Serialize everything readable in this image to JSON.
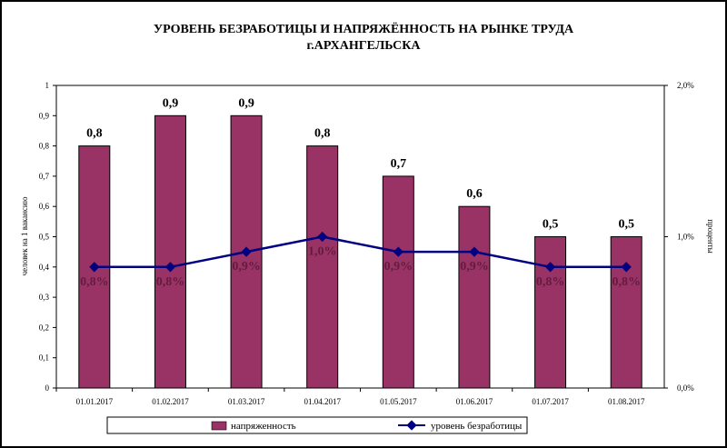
{
  "chart_data": {
    "type": "bar",
    "title_lines": [
      "УРОВЕНЬ БЕЗРАБОТИЦЫ И НАПРЯЖЁННОСТЬ НА РЫНКЕ ТРУДА",
      "г.АРХАНГЕЛЬСКА"
    ],
    "categories": [
      "01.01.2017",
      "01.02.2017",
      "01.03.2017",
      "01.04.2017",
      "01.05.2017",
      "01.06.2017",
      "01.07.2017",
      "01.08.2017"
    ],
    "ylabel": "человек на 1 вакансию",
    "y2label": "проценты",
    "ylim": [
      0,
      1
    ],
    "y_ticks": [
      "0",
      "0,1",
      "0,2",
      "0,3",
      "0,4",
      "0,5",
      "0,6",
      "0,7",
      "0,8",
      "0,9",
      "1"
    ],
    "y2lim": [
      0,
      2
    ],
    "y2_ticks": [
      "0,0%",
      "1,0%",
      "2,0%"
    ],
    "series": [
      {
        "name": "напряженность",
        "kind": "bar",
        "axis": "left",
        "values": [
          0.8,
          0.9,
          0.9,
          0.8,
          0.7,
          0.6,
          0.5,
          0.5
        ],
        "labels": [
          "0,8",
          "0,9",
          "0,9",
          "0,8",
          "0,7",
          "0,6",
          "0,5",
          "0,5"
        ],
        "color": "#993366"
      },
      {
        "name": "уровень безработицы",
        "kind": "line",
        "axis": "right",
        "values": [
          0.8,
          0.8,
          0.9,
          1.0,
          0.9,
          0.9,
          0.8,
          0.8
        ],
        "labels": [
          "0,8%",
          "0,8%",
          "0,9%",
          "1,0%",
          "0,9%",
          "0,9%",
          "0,8%",
          "0,8%"
        ],
        "color": "#000080"
      }
    ],
    "legend_position": "bottom",
    "grid": false
  }
}
